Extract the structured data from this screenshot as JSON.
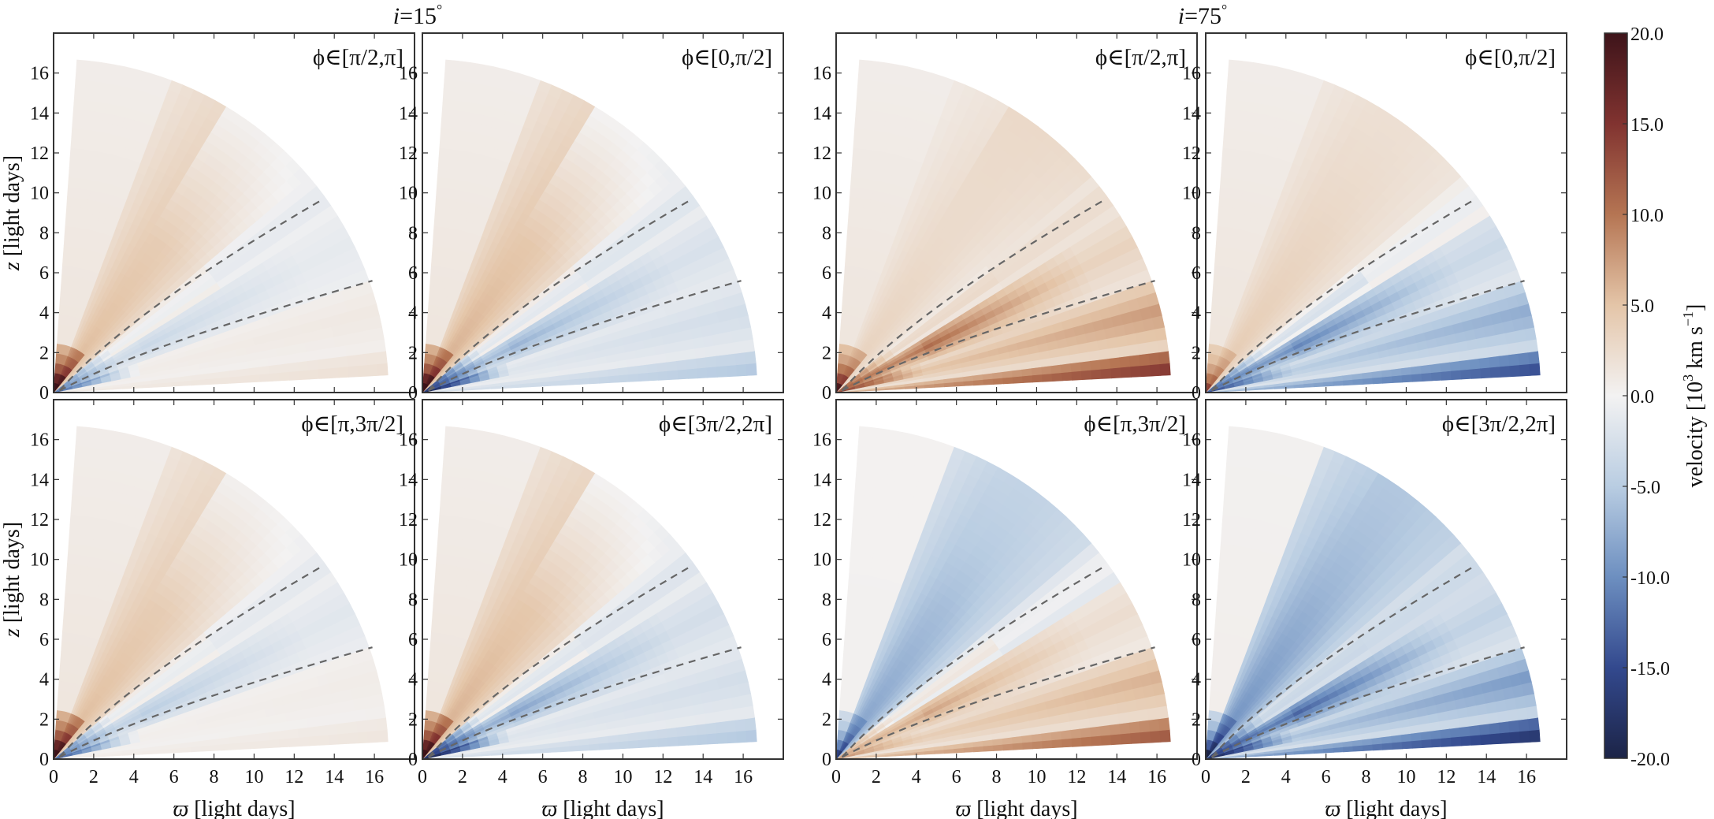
{
  "chart_data": {
    "type": "heatmap",
    "description": "Velocity maps in the (varpi, z) plane for two inclinations and four azimuthal quadrants",
    "group_titles": [
      {
        "id": "i15",
        "text_italic": "i",
        "text_rest": "=15",
        "degree": "°"
      },
      {
        "id": "i75",
        "text_italic": "i",
        "text_rest": "=75",
        "degree": "°"
      }
    ],
    "xlabel": {
      "symbol": "ϖ",
      "text": " [light days]"
    },
    "ylabel": {
      "symbol": "z",
      "text": " [light days]"
    },
    "xlim": [
      0,
      18
    ],
    "ylim": [
      0,
      18
    ],
    "xticks": [
      0,
      2,
      4,
      6,
      8,
      10,
      12,
      14,
      16
    ],
    "xtick_labels": [
      "0",
      "2",
      "4",
      "6",
      "8",
      "10",
      "12",
      "14",
      "16"
    ],
    "yticks": [
      0,
      2,
      4,
      6,
      8,
      10,
      12,
      14,
      16
    ],
    "ytick_labels": [
      "0",
      "2",
      "4",
      "6",
      "8",
      "10",
      "12",
      "14",
      "16"
    ],
    "grid": false,
    "wedge": {
      "r_max": 16.7,
      "theta_min_deg": 3,
      "theta_max_deg": 86
    },
    "dashed_lines": [
      {
        "name": "upper-boundary",
        "end": [
          13.3,
          9.6
        ]
      },
      {
        "name": "lower-boundary",
        "end": [
          15.9,
          5.6
        ]
      }
    ],
    "colorbar": {
      "label": "velocity [10³ km s⁻¹]",
      "label_parts": {
        "main": "velocity [10",
        "sup1": "3",
        "mid": " km s",
        "sup2": "−1",
        "end": "]"
      },
      "vmin": -20.0,
      "vmax": 20.0,
      "ticks": [
        20.0,
        15.0,
        10.0,
        5.0,
        0.0,
        -5.0,
        -10.0,
        -15.0,
        -20.0
      ],
      "tick_labels": [
        "20.0",
        "15.0",
        "10.0",
        "5.0",
        "0.0",
        "-5.0",
        "-10.0",
        "-15.0",
        "-20.0"
      ],
      "colormap": "RdBu_r-like",
      "color_stops": [
        {
          "v": -20,
          "color": "#1c2447"
        },
        {
          "v": -15,
          "color": "#33498e"
        },
        {
          "v": -10,
          "color": "#6d8fc0"
        },
        {
          "v": -5,
          "color": "#b9cde2"
        },
        {
          "v": 0,
          "color": "#f3f2f2"
        },
        {
          "v": 5,
          "color": "#e4c5a8"
        },
        {
          "v": 10,
          "color": "#b57553"
        },
        {
          "v": 15,
          "color": "#813330"
        },
        {
          "v": 20,
          "color": "#3e141a"
        }
      ]
    },
    "panels": [
      {
        "id": "i15-q2",
        "group": "i15",
        "row": 0,
        "col": 0,
        "label": "ϕ∈[π/2,π]",
        "show_ylabel": true,
        "show_xlabel": false,
        "field": {
          "polar": 3,
          "cone": 4,
          "outflow": -3,
          "jet": -11,
          "disk": 1.5,
          "base": 18,
          "outer_upper": -1.5
        }
      },
      {
        "id": "i15-q1",
        "group": "i15",
        "row": 0,
        "col": 1,
        "label": "ϕ∈[0,π/2]",
        "show_ylabel": false,
        "show_xlabel": false,
        "field": {
          "polar": 3,
          "cone": 4.5,
          "outflow": -6,
          "jet": -17,
          "disk": -4,
          "base": 18,
          "outer_upper": -2
        }
      },
      {
        "id": "i75-q2",
        "group": "i75",
        "row": 0,
        "col": 2,
        "label": "ϕ∈[π/2,π]",
        "show_ylabel": false,
        "show_xlabel": false,
        "field": {
          "polar": 3,
          "cone": 2.5,
          "outflow": 9,
          "jet": 12,
          "disk": 11,
          "base": 14,
          "outer_upper": 2
        }
      },
      {
        "id": "i75-q1",
        "group": "i75",
        "row": 0,
        "col": 3,
        "label": "ϕ∈[0,π/2]",
        "show_ylabel": false,
        "show_xlabel": false,
        "field": {
          "polar": 3,
          "cone": 3,
          "outflow": -9,
          "jet": -13,
          "disk": -11,
          "base": 10,
          "outer_upper": 1
        }
      },
      {
        "id": "i15-q3",
        "group": "i15",
        "row": 1,
        "col": 0,
        "label": "ϕ∈[π,3π/2]",
        "show_ylabel": true,
        "show_xlabel": true,
        "field": {
          "polar": 3,
          "cone": 4,
          "outflow": -4,
          "jet": -12,
          "disk": 1,
          "base": 18,
          "outer_upper": -1.5
        }
      },
      {
        "id": "i15-q4",
        "group": "i15",
        "row": 1,
        "col": 1,
        "label": "ϕ∈[3π/2,2π]",
        "show_ylabel": false,
        "show_xlabel": true,
        "field": {
          "polar": 3,
          "cone": 4.5,
          "outflow": -7,
          "jet": -18,
          "disk": -4,
          "base": 18,
          "outer_upper": -2
        }
      },
      {
        "id": "i75-q3",
        "group": "i75",
        "row": 1,
        "col": 2,
        "label": "ϕ∈[π,3π/2]",
        "show_ylabel": false,
        "show_xlabel": true,
        "field": {
          "polar": 0.5,
          "cone": -6,
          "outflow": 6,
          "jet": 7,
          "disk": 9,
          "base": -12,
          "outer_upper": -2
        }
      },
      {
        "id": "i75-q4",
        "group": "i75",
        "row": 1,
        "col": 3,
        "label": "ϕ∈[3π/2,2π]",
        "show_ylabel": false,
        "show_xlabel": true,
        "field": {
          "polar": 1,
          "cone": -7,
          "outflow": -11,
          "jet": -17,
          "disk": -13,
          "base": -15,
          "outer_upper": -3
        }
      }
    ]
  }
}
